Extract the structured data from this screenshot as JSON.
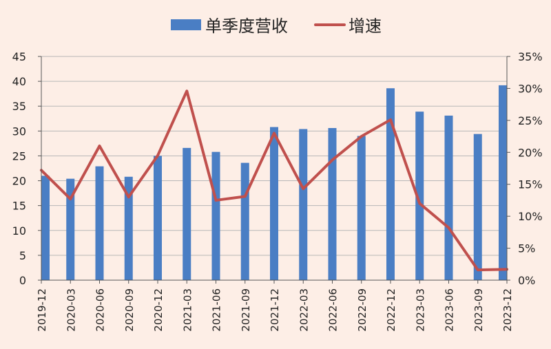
{
  "chart_data": {
    "type": "bar",
    "title": "",
    "categories": [
      "2019-12",
      "2020-03",
      "2020-06",
      "2020-09",
      "2020-12",
      "2021-03",
      "2021-06",
      "2021-09",
      "2021-12",
      "2022-03",
      "2022-06",
      "2022-09",
      "2022-12",
      "2023-03",
      "2023-06",
      "2023-09",
      "2023-12"
    ],
    "series": [
      {
        "name": "单季度营收",
        "type": "bar",
        "axis": "left",
        "color": "#4a7ec4",
        "values": [
          21.0,
          20.4,
          22.9,
          20.8,
          25.0,
          26.6,
          25.8,
          23.6,
          30.8,
          30.4,
          30.6,
          29.0,
          38.6,
          33.9,
          33.1,
          29.4,
          39.2
        ]
      },
      {
        "name": "增速",
        "type": "line",
        "axis": "right",
        "color": "#c0504d",
        "values": [
          0.172,
          0.127,
          0.21,
          0.13,
          0.195,
          0.296,
          0.125,
          0.131,
          0.23,
          0.143,
          0.188,
          0.225,
          0.251,
          0.12,
          0.082,
          0.016,
          0.017
        ]
      }
    ],
    "yleft": {
      "min": 0,
      "max": 45,
      "ticks": [
        "0",
        "5",
        "10",
        "15",
        "20",
        "25",
        "30",
        "35",
        "40",
        "45"
      ]
    },
    "yright": {
      "min": 0,
      "max": 0.35,
      "ticks": [
        "0%",
        "5%",
        "10%",
        "15%",
        "20%",
        "25%",
        "30%",
        "35%"
      ]
    },
    "grid": true,
    "legend": "top"
  }
}
